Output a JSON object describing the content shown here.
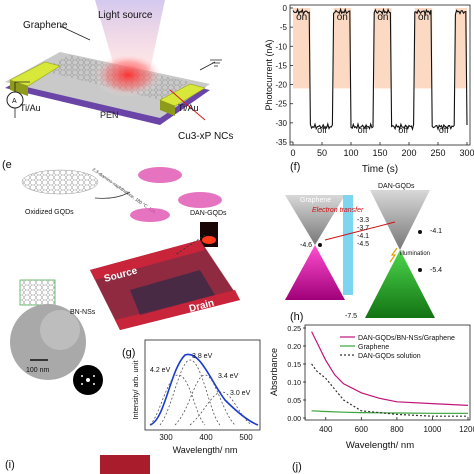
{
  "panel_a": {
    "graphene": "Graphene",
    "light_source": "Light source",
    "left_electrode": "Ti/Au",
    "right_electrode": "Ti/Au",
    "substrate": "PEN",
    "nanocrystals": "Cu3-xP NCs",
    "ammeter": "A"
  },
  "panel_b": {
    "ylabel": "Photocurrent (nA)",
    "xlabel": "Time (s)",
    "on_labels": [
      "on",
      "on",
      "on",
      "on"
    ],
    "off_labels": [
      "off",
      "off",
      "off",
      "off"
    ],
    "xticks": [
      "0",
      "50",
      "100",
      "150",
      "200",
      "250",
      "300"
    ],
    "yticks": [
      "0",
      "-5",
      "-10",
      "-15",
      "-20",
      "-25",
      "-30",
      "-35"
    ]
  },
  "panel_e": {
    "letter": "(e",
    "oxidized": "Oxidized GQDs",
    "reagent": "2,3-diamino-naphthalene, 180 °C, 12h",
    "dan_gqds": "DAN-GQDs",
    "source": "Source",
    "drain": "Drain",
    "bn_nss": "BN-NSs",
    "scale": "100 nm"
  },
  "panel_f": {
    "letter": "(f)",
    "graphene": "Graphene",
    "dan_gqds": "DAN-GQDs",
    "transfer": "Electron transfer",
    "illumination": "illumination",
    "levels": [
      "-3.3",
      "-3.7",
      "-4.1",
      "-4.5",
      "-4.6",
      "-4.1",
      "-5.4",
      "-7.5"
    ]
  },
  "panel_g": {
    "letter": "(g)",
    "ylabel": "Intensity/ arb. unit",
    "xlabel": "Wavelength/ nm",
    "xticks": [
      "300",
      "400",
      "500"
    ],
    "peaks": [
      "3.8 eV",
      "4.2 eV",
      "3.4 eV",
      "3.0 eV"
    ]
  },
  "panel_h": {
    "letter": "(h)",
    "ylabel": "Absorbance",
    "xlabel": "Wavelength/ nm",
    "xticks": [
      "400",
      "600",
      "800",
      "1000",
      "1200"
    ],
    "yticks": [
      "0.00",
      "0.05",
      "0.10",
      "0.15",
      "0.20",
      "0.25"
    ],
    "legend": [
      "DAN-GQDs/BN-NSs/Graphene",
      "Graphene",
      "DAN-GQDs solution"
    ],
    "colors": [
      "#c0147a",
      "#3aa33a",
      "#333333"
    ]
  },
  "panel_i": {
    "letter": "(i)"
  },
  "panel_j": {
    "letter": "(j)"
  },
  "chart_data": [
    {
      "type": "line",
      "ylabel": "Photocurrent (nA)",
      "xlabel": "Time (s)",
      "xlim": [
        0,
        300
      ],
      "ylim": [
        -35,
        0
      ],
      "on_intervals": [
        [
          0,
          30
        ],
        [
          70,
          100
        ],
        [
          140,
          170
        ],
        [
          210,
          240
        ],
        [
          280,
          300
        ]
      ],
      "on_level": -1,
      "off_level": -31
    },
    {
      "type": "line",
      "xlabel": "Wavelength/ nm",
      "ylabel": "Absorbance",
      "xlim": [
        300,
        1200
      ],
      "ylim": [
        0,
        0.25
      ],
      "series": [
        {
          "name": "DAN-GQDs/BN-NSs/Graphene",
          "x": [
            320,
            350,
            400,
            450,
            500,
            600,
            700,
            800,
            1000,
            1200
          ],
          "values": [
            0.24,
            0.21,
            0.16,
            0.12,
            0.095,
            0.07,
            0.055,
            0.045,
            0.04,
            0.035
          ]
        },
        {
          "name": "Graphene",
          "x": [
            320,
            400,
            500,
            600,
            800,
            1000,
            1200
          ],
          "values": [
            0.02,
            0.018,
            0.016,
            0.015,
            0.014,
            0.013,
            0.013
          ]
        },
        {
          "name": "DAN-GQDs solution",
          "x": [
            320,
            350,
            400,
            450,
            500,
            600,
            800,
            1000,
            1200
          ],
          "values": [
            0.15,
            0.13,
            0.11,
            0.08,
            0.05,
            0.02,
            0.01,
            0.005,
            0.005
          ]
        }
      ]
    }
  ]
}
